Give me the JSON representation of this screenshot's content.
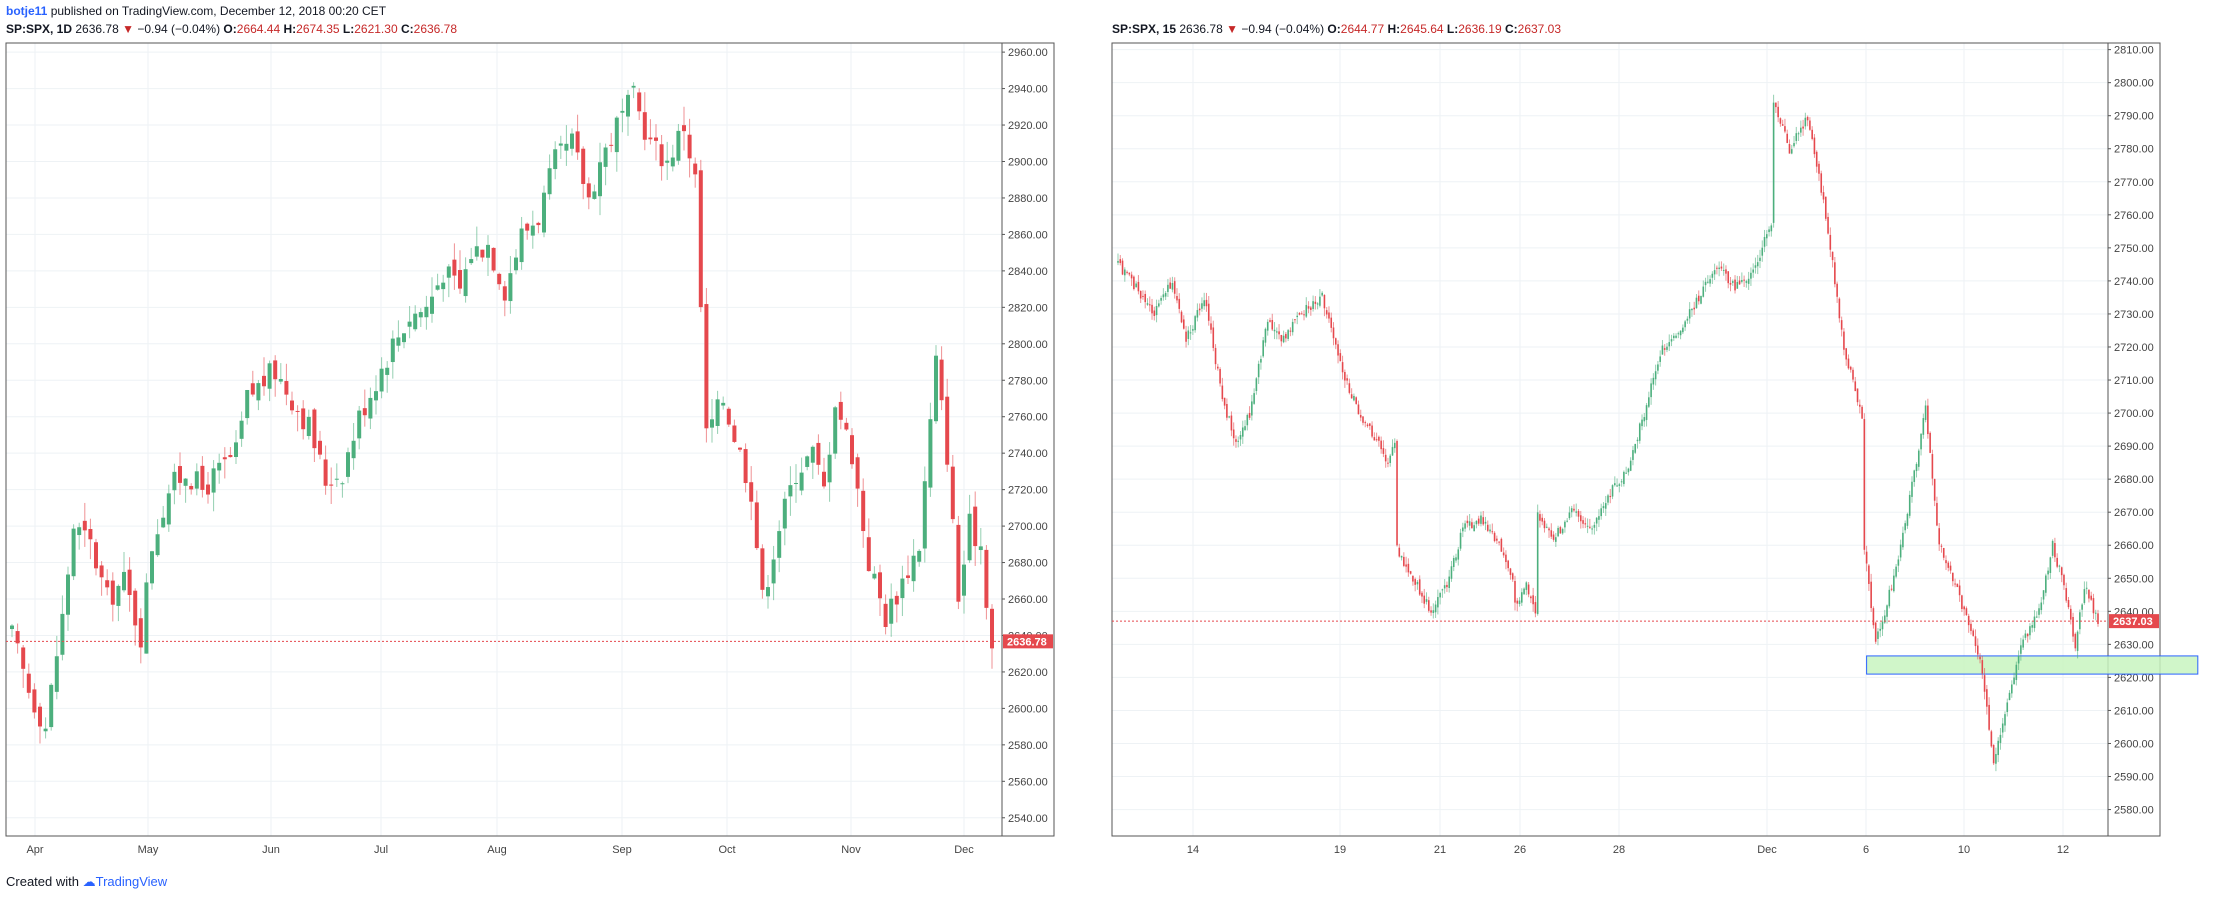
{
  "header": {
    "author": "botje11",
    "published_text": "published on TradingView.com, December 12, 2018 00:20 CET"
  },
  "footer": {
    "created_with": "Created with",
    "brand": "TradingView"
  },
  "colors": {
    "up": "#26a69a",
    "up_body": "#4caf7d",
    "down": "#e5484d",
    "grid": "#eef2f5",
    "frame": "#555555",
    "zone_fill": "#c8f5c0",
    "zone_stroke": "#2962ff"
  },
  "panels": [
    {
      "legend": {
        "symbol": "SP:SPX, 1D",
        "last": "2636.78",
        "change": "−0.94 (−0.04%)",
        "o_label": "O:",
        "o": "2664.44",
        "h_label": "H:",
        "h": "2674.35",
        "l_label": "L:",
        "l": "2621.30",
        "c_label": "C:",
        "c": "2636.78"
      },
      "price_tag": "2636.78"
    },
    {
      "legend": {
        "symbol": "SP:SPX, 15",
        "last": "2636.78",
        "change": "−0.94 (−0.04%)",
        "o_label": "O:",
        "o": "2644.77",
        "h_label": "H:",
        "h": "2645.64",
        "l_label": "L:",
        "l": "2636.19",
        "c_label": "C:",
        "c": "2637.03"
      },
      "price_tag": "2637.03"
    }
  ],
  "chart_data": [
    {
      "type": "candlestick",
      "symbol": "SP:SPX",
      "interval": "1D",
      "ylim": [
        2530,
        2965
      ],
      "y_ticks": [
        "2540.00",
        "2560.00",
        "2580.00",
        "2600.00",
        "2620.00",
        "2640.00",
        "2660.00",
        "2680.00",
        "2700.00",
        "2720.00",
        "2740.00",
        "2760.00",
        "2780.00",
        "2800.00",
        "2820.00",
        "2840.00",
        "2860.00",
        "2880.00",
        "2900.00",
        "2920.00",
        "2940.00",
        "2960.00"
      ],
      "x_ticks": [
        "Apr",
        "May",
        "Jun",
        "Jul",
        "Aug",
        "Sep",
        "Oct",
        "Nov",
        "Dec"
      ],
      "last_price": 2636.78,
      "close_path": [
        [
          0,
          2640
        ],
        [
          3,
          2610
        ],
        [
          6,
          2590
        ],
        [
          9,
          2650
        ],
        [
          11,
          2700
        ],
        [
          14,
          2690
        ],
        [
          17,
          2660
        ],
        [
          20,
          2670
        ],
        [
          23,
          2640
        ],
        [
          25,
          2690
        ],
        [
          28,
          2720
        ],
        [
          31,
          2730
        ],
        [
          34,
          2720
        ],
        [
          37,
          2730
        ],
        [
          40,
          2740
        ],
        [
          42,
          2770
        ],
        [
          45,
          2780
        ],
        [
          47,
          2785
        ],
        [
          50,
          2770
        ],
        [
          53,
          2755
        ],
        [
          56,
          2725
        ],
        [
          59,
          2730
        ],
        [
          62,
          2760
        ],
        [
          65,
          2780
        ],
        [
          68,
          2800
        ],
        [
          71,
          2815
        ],
        [
          74,
          2820
        ],
        [
          77,
          2840
        ],
        [
          80,
          2830
        ],
        [
          82,
          2850
        ],
        [
          85,
          2855
        ],
        [
          88,
          2830
        ],
        [
          91,
          2860
        ],
        [
          94,
          2870
        ],
        [
          97,
          2900
        ],
        [
          100,
          2910
        ],
        [
          103,
          2880
        ],
        [
          105,
          2900
        ],
        [
          108,
          2920
        ],
        [
          111,
          2935
        ],
        [
          114,
          2910
        ],
        [
          117,
          2900
        ],
        [
          120,
          2920
        ],
        [
          122,
          2890
        ],
        [
          124,
          2750
        ],
        [
          127,
          2770
        ],
        [
          130,
          2740
        ],
        [
          132,
          2720
        ],
        [
          134,
          2660
        ],
        [
          137,
          2700
        ],
        [
          140,
          2730
        ],
        [
          143,
          2740
        ],
        [
          145,
          2720
        ],
        [
          147,
          2770
        ],
        [
          150,
          2740
        ],
        [
          153,
          2680
        ],
        [
          156,
          2650
        ],
        [
          159,
          2670
        ],
        [
          162,
          2690
        ],
        [
          165,
          2790
        ],
        [
          167,
          2740
        ],
        [
          169,
          2660
        ],
        [
          171,
          2700
        ],
        [
          173,
          2690
        ],
        [
          175,
          2633
        ]
      ]
    },
    {
      "type": "candlestick",
      "symbol": "SP:SPX",
      "interval": "15",
      "ylim": [
        2572,
        2812
      ],
      "y_ticks": [
        "2580.00",
        "2590.00",
        "2600.00",
        "2610.00",
        "2620.00",
        "2630.00",
        "2640.00",
        "2650.00",
        "2660.00",
        "2670.00",
        "2680.00",
        "2690.00",
        "2700.00",
        "2710.00",
        "2720.00",
        "2730.00",
        "2740.00",
        "2750.00",
        "2760.00",
        "2770.00",
        "2780.00",
        "2790.00",
        "2800.00",
        "2810.00"
      ],
      "x_ticks": [
        "14",
        "19",
        "21",
        "26",
        "28",
        "Dec",
        "6",
        "10",
        "12"
      ],
      "last_price": 2637.03,
      "close_path": [
        [
          0,
          2745
        ],
        [
          8,
          2738
        ],
        [
          16,
          2730
        ],
        [
          24,
          2740
        ],
        [
          30,
          2722
        ],
        [
          38,
          2735
        ],
        [
          46,
          2705
        ],
        [
          52,
          2690
        ],
        [
          58,
          2700
        ],
        [
          66,
          2728
        ],
        [
          72,
          2722
        ],
        [
          80,
          2730
        ],
        [
          90,
          2735
        ],
        [
          98,
          2715
        ],
        [
          106,
          2700
        ],
        [
          114,
          2692
        ],
        [
          118,
          2685
        ],
        [
          122,
          2690
        ],
        [
          122,
          2660
        ],
        [
          130,
          2650
        ],
        [
          138,
          2640
        ],
        [
          146,
          2650
        ],
        [
          152,
          2665
        ],
        [
          160,
          2668
        ],
        [
          168,
          2660
        ],
        [
          174,
          2650
        ],
        [
          174,
          2640
        ],
        [
          180,
          2648
        ],
        [
          184,
          2640
        ],
        [
          184,
          2670
        ],
        [
          192,
          2662
        ],
        [
          200,
          2670
        ],
        [
          208,
          2665
        ],
        [
          216,
          2675
        ],
        [
          224,
          2682
        ],
        [
          232,
          2700
        ],
        [
          240,
          2720
        ],
        [
          248,
          2725
        ],
        [
          256,
          2735
        ],
        [
          264,
          2745
        ],
        [
          272,
          2738
        ],
        [
          280,
          2742
        ],
        [
          288,
          2758
        ],
        [
          288,
          2795
        ],
        [
          296,
          2780
        ],
        [
          304,
          2790
        ],
        [
          312,
          2760
        ],
        [
          320,
          2720
        ],
        [
          328,
          2698
        ],
        [
          328,
          2665
        ],
        [
          334,
          2630
        ],
        [
          342,
          2650
        ],
        [
          348,
          2670
        ],
        [
          356,
          2702
        ],
        [
          362,
          2660
        ],
        [
          368,
          2650
        ],
        [
          374,
          2638
        ],
        [
          380,
          2625
        ],
        [
          386,
          2595
        ],
        [
          392,
          2612
        ],
        [
          398,
          2630
        ],
        [
          406,
          2640
        ],
        [
          412,
          2660
        ],
        [
          416,
          2650
        ],
        [
          422,
          2630
        ],
        [
          426,
          2648
        ],
        [
          432,
          2637
        ]
      ],
      "zone": {
        "x_from": 330,
        "x_to": 476,
        "y_from": 2621,
        "y_to": 2626.5
      }
    }
  ]
}
